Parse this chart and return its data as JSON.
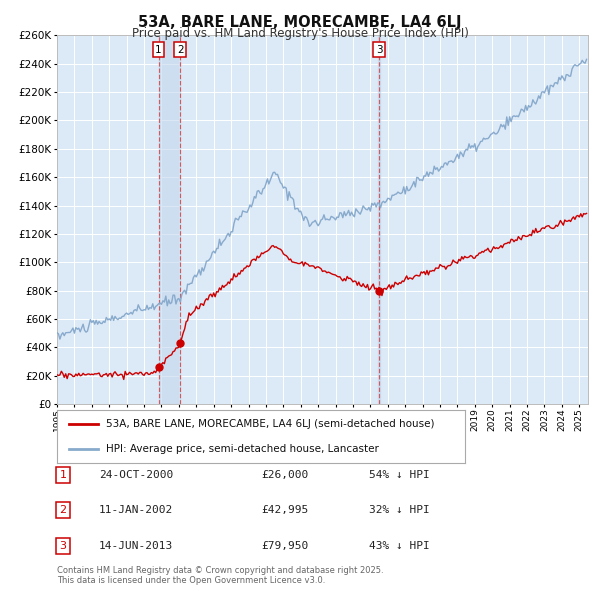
{
  "title": "53A, BARE LANE, MORECAMBE, LA4 6LJ",
  "subtitle": "Price paid vs. HM Land Registry's House Price Index (HPI)",
  "background_color": "#ffffff",
  "plot_bg_color": "#dce9f7",
  "grid_color": "#ffffff",
  "ylim": [
    0,
    260000
  ],
  "yticks": [
    0,
    20000,
    40000,
    60000,
    80000,
    100000,
    120000,
    140000,
    160000,
    180000,
    200000,
    220000,
    240000,
    260000
  ],
  "sale_prices": [
    26000,
    42995,
    79950
  ],
  "sale_labels": [
    "1",
    "2",
    "3"
  ],
  "legend_property": "53A, BARE LANE, MORECAMBE, LA4 6LJ (semi-detached house)",
  "legend_hpi": "HPI: Average price, semi-detached house, Lancaster",
  "property_color": "#cc0000",
  "hpi_color": "#88aacc",
  "table_rows": [
    {
      "label": "1",
      "date": "24-OCT-2000",
      "price": "£26,000",
      "pct": "54% ↓ HPI"
    },
    {
      "label": "2",
      "date": "11-JAN-2002",
      "price": "£42,995",
      "pct": "32% ↓ HPI"
    },
    {
      "label": "3",
      "date": "14-JUN-2013",
      "price": "£79,950",
      "pct": "43% ↓ HPI"
    }
  ],
  "footer": "Contains HM Land Registry data © Crown copyright and database right 2025.\nThis data is licensed under the Open Government Licence v3.0."
}
